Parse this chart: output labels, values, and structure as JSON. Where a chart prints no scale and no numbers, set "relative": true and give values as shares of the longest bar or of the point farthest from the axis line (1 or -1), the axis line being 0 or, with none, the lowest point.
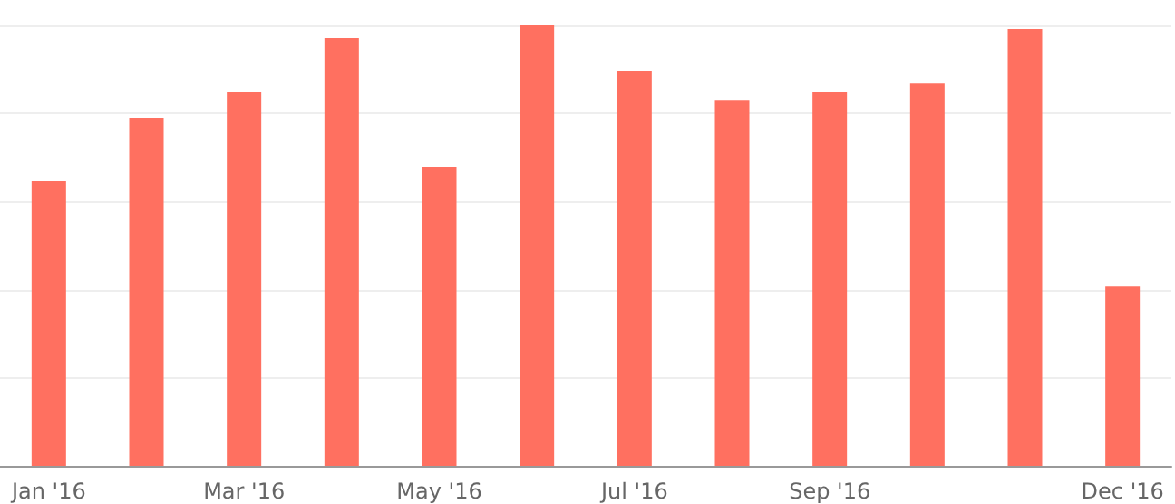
{
  "chart_data": {
    "type": "bar",
    "relative": true,
    "categories": [
      "Jan '16",
      null,
      "Mar '16",
      null,
      "May '16",
      null,
      "Jul '16",
      null,
      "Sep '16",
      null,
      null,
      "Dec '16"
    ],
    "values": [
      0.646,
      0.79,
      0.848,
      0.971,
      0.679,
      1,
      0.897,
      0.831,
      0.848,
      0.868,
      0.992,
      0.407
    ],
    "color": "#ff7060",
    "grid": "y"
  }
}
